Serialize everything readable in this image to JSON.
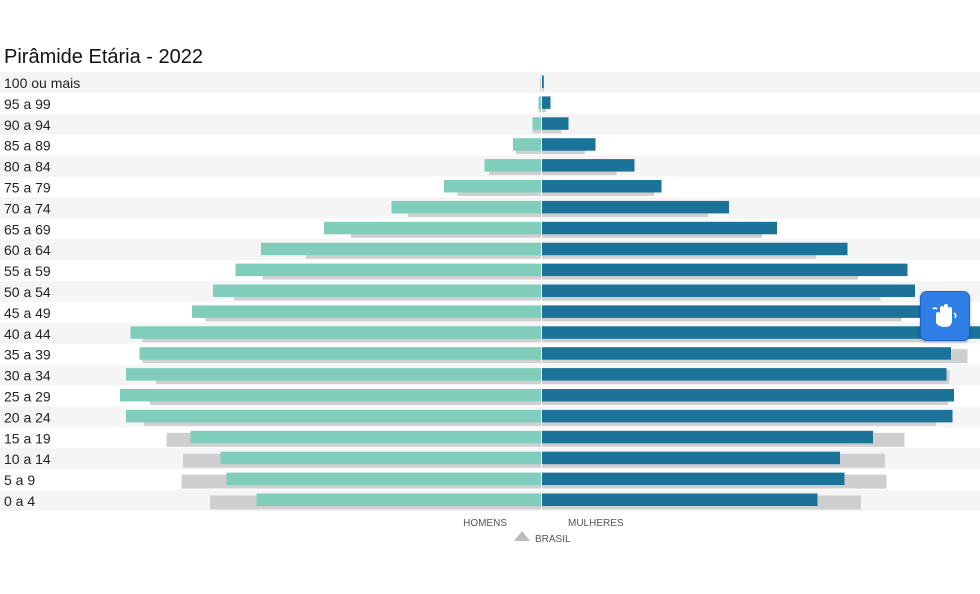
{
  "title": "Pirâmide Etária - 2022",
  "chart_data": {
    "type": "bar",
    "title": "Pirâmide Etária - 2022",
    "categories": [
      "100 ou mais",
      "95 a 99",
      "90 a 94",
      "85 a 89",
      "80 a 84",
      "75 a 79",
      "70 a 74",
      "65 a 69",
      "60 a 64",
      "55 a 59",
      "50 a 54",
      "45 a 49",
      "40 a 44",
      "35 a 39",
      "30 a 34",
      "25 a 29",
      "20 a 24",
      "15 a 19",
      "10 a 14",
      "5 a 9",
      "0 a 4"
    ],
    "series": [
      {
        "name": "HOMENS",
        "values": [
          0.5,
          2,
          6,
          19,
          38,
          65,
          100,
          145,
          187,
          204,
          219,
          233,
          274,
          268,
          277,
          281,
          277,
          234,
          214,
          210,
          190
        ]
      },
      {
        "name": "MULHERES",
        "values": [
          1.5,
          6,
          18,
          36,
          62,
          80,
          125,
          157,
          204,
          244,
          249,
          258,
          302,
          273,
          270,
          275,
          274,
          221,
          199,
          202,
          184
        ]
      },
      {
        "name": "BRASIL",
        "values": [
          {
            "homens": 1,
            "mulheres": 1.5
          },
          {
            "homens": 2,
            "mulheres": 3
          },
          {
            "homens": 6,
            "mulheres": 13
          },
          {
            "homens": 17,
            "mulheres": 29
          },
          {
            "homens": 35,
            "mulheres": 50
          },
          {
            "homens": 56,
            "mulheres": 75
          },
          {
            "homens": 89,
            "mulheres": 111
          },
          {
            "homens": 127,
            "mulheres": 147
          },
          {
            "homens": 157,
            "mulheres": 183
          },
          {
            "homens": 186,
            "mulheres": 211
          },
          {
            "homens": 205,
            "mulheres": 226
          },
          {
            "homens": 224,
            "mulheres": 240
          },
          {
            "homens": 266,
            "mulheres": 284
          },
          {
            "homens": 266,
            "mulheres": 284
          },
          {
            "homens": 257,
            "mulheres": 272
          },
          {
            "homens": 261,
            "mulheres": 271
          },
          {
            "homens": 265,
            "mulheres": 263
          },
          {
            "homens": 250,
            "mulheres": 242
          },
          {
            "homens": 239,
            "mulheres": 229
          },
          {
            "homens": 240,
            "mulheres": 230
          },
          {
            "homens": 221,
            "mulheres": 213
          }
        ]
      }
    ],
    "legend": {
      "homens": "HOMENS",
      "mulheres": "MULHERES",
      "brasil": "BRASIL"
    },
    "colors": {
      "homens": "#80cdbb",
      "mulheres": "#1c7399",
      "brasil": "#cfcfcf",
      "stripe": "#f5f5f5"
    }
  },
  "widget": {
    "icon": "libras-hands-icon"
  }
}
